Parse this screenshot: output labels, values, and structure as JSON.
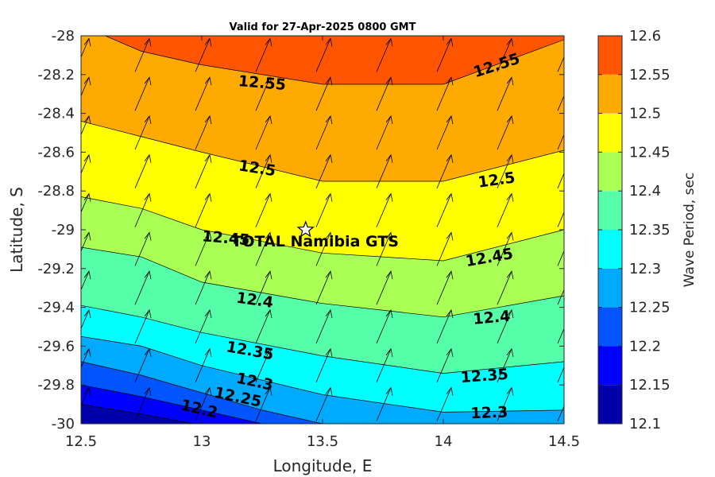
{
  "chart_data": {
    "type": "contour",
    "title": "Valid for 27-Apr-2025 0800 GMT",
    "xlabel": "Longitude, E",
    "ylabel": "Latitude, S",
    "colorbar_label": "Wave Period, sec",
    "xlim": [
      12.5,
      14.5
    ],
    "ylim": [
      -30,
      -28
    ],
    "x_ticks": [
      "12.5",
      "13",
      "13.5",
      "14",
      "14.5"
    ],
    "y_ticks": [
      "-28",
      "-28.2",
      "-28.4",
      "-28.6",
      "-28.8",
      "-29",
      "-29.2",
      "-29.4",
      "-29.6",
      "-29.8",
      "-30"
    ],
    "colorbar_ticks": [
      "12.6",
      "12.55",
      "12.5",
      "12.45",
      "12.4",
      "12.35",
      "12.3",
      "12.25",
      "12.2",
      "12.15",
      "12.1"
    ],
    "levels": [
      12.1,
      12.15,
      12.2,
      12.25,
      12.3,
      12.35,
      12.4,
      12.45,
      12.5,
      12.55,
      12.6
    ],
    "level_colors": [
      "#0000aa",
      "#0000ff",
      "#0055ff",
      "#00aaff",
      "#00ffff",
      "#55ffaa",
      "#aaff55",
      "#ffff00",
      "#ffaa00",
      "#ff5500"
    ],
    "contours": [
      {
        "level": 12.55,
        "lon": [
          12.6,
          12.75,
          13.0,
          13.5,
          14.0,
          14.5
        ],
        "lat": [
          -28.0,
          -28.08,
          -28.15,
          -28.25,
          -28.25,
          -28.02
        ]
      },
      {
        "level": 12.5,
        "lon": [
          12.5,
          12.75,
          13.0,
          13.5,
          14.0,
          14.5
        ],
        "lat": [
          -28.44,
          -28.52,
          -28.6,
          -28.75,
          -28.75,
          -28.59
        ]
      },
      {
        "level": 12.45,
        "lon": [
          12.5,
          12.75,
          13.0,
          13.5,
          14.0,
          14.5
        ],
        "lat": [
          -28.83,
          -28.89,
          -29.0,
          -29.12,
          -29.16,
          -29.0
        ]
      },
      {
        "level": 12.4,
        "lon": [
          12.5,
          12.75,
          13.0,
          13.5,
          14.0,
          14.5
        ],
        "lat": [
          -29.09,
          -29.14,
          -29.27,
          -29.38,
          -29.45,
          -29.34
        ]
      },
      {
        "level": 12.35,
        "lon": [
          12.5,
          12.75,
          13.0,
          13.5,
          14.0,
          14.5
        ],
        "lat": [
          -29.39,
          -29.45,
          -29.53,
          -29.65,
          -29.74,
          -29.68
        ]
      },
      {
        "level": 12.3,
        "lon": [
          12.5,
          12.75,
          13.0,
          13.5,
          14.0,
          14.5
        ],
        "lat": [
          -29.55,
          -29.6,
          -29.7,
          -29.85,
          -29.94,
          -29.93
        ]
      },
      {
        "level": 12.25,
        "lon": [
          12.5,
          12.75,
          13.0,
          13.25,
          13.5
        ],
        "lat": [
          -29.68,
          -29.75,
          -29.84,
          -29.93,
          -30.0
        ]
      },
      {
        "level": 12.2,
        "lon": [
          12.5,
          12.75,
          13.0,
          13.25
        ],
        "lat": [
          -29.8,
          -29.86,
          -29.93,
          -30.0
        ]
      },
      {
        "level": 12.15,
        "lon": [
          12.5,
          12.75,
          12.97
        ],
        "lat": [
          -29.9,
          -29.95,
          -30.0
        ]
      }
    ],
    "contour_labels": [
      {
        "text": "12.55",
        "lon": 13.25,
        "lat": -28.24,
        "angle": 5
      },
      {
        "text": "12.55",
        "lon": 14.22,
        "lat": -28.15,
        "angle": -18
      },
      {
        "text": "12.5",
        "lon": 13.23,
        "lat": -28.68,
        "angle": 9
      },
      {
        "text": "12.5",
        "lon": 14.22,
        "lat": -28.74,
        "angle": -8
      },
      {
        "text": "12.45",
        "lon": 13.1,
        "lat": -29.04,
        "angle": 5
      },
      {
        "text": "12.45",
        "lon": 14.19,
        "lat": -29.14,
        "angle": -10
      },
      {
        "text": "12.4",
        "lon": 13.22,
        "lat": -29.36,
        "angle": 8
      },
      {
        "text": "12.4",
        "lon": 14.2,
        "lat": -29.45,
        "angle": -5
      },
      {
        "text": "12.35",
        "lon": 13.2,
        "lat": -29.62,
        "angle": 10
      },
      {
        "text": "12.35",
        "lon": 14.17,
        "lat": -29.75,
        "angle": -4
      },
      {
        "text": "12.3",
        "lon": 13.22,
        "lat": -29.78,
        "angle": 12
      },
      {
        "text": "12.3",
        "lon": 14.19,
        "lat": -29.94,
        "angle": -2
      },
      {
        "text": "12.25",
        "lon": 13.15,
        "lat": -29.86,
        "angle": 12
      },
      {
        "text": "12.2",
        "lon": 12.99,
        "lat": -29.92,
        "angle": 13
      }
    ],
    "vector_field": {
      "lon_start": 12.5,
      "lon_step": 0.25,
      "lon_count": 9,
      "lat_start": -28.1,
      "lat_step": -0.2,
      "lat_count": 10,
      "direction": "north-northeast"
    },
    "site": {
      "label": "TOTAL Namibia GTS",
      "lon": 13.43,
      "lat": -29.0
    }
  }
}
